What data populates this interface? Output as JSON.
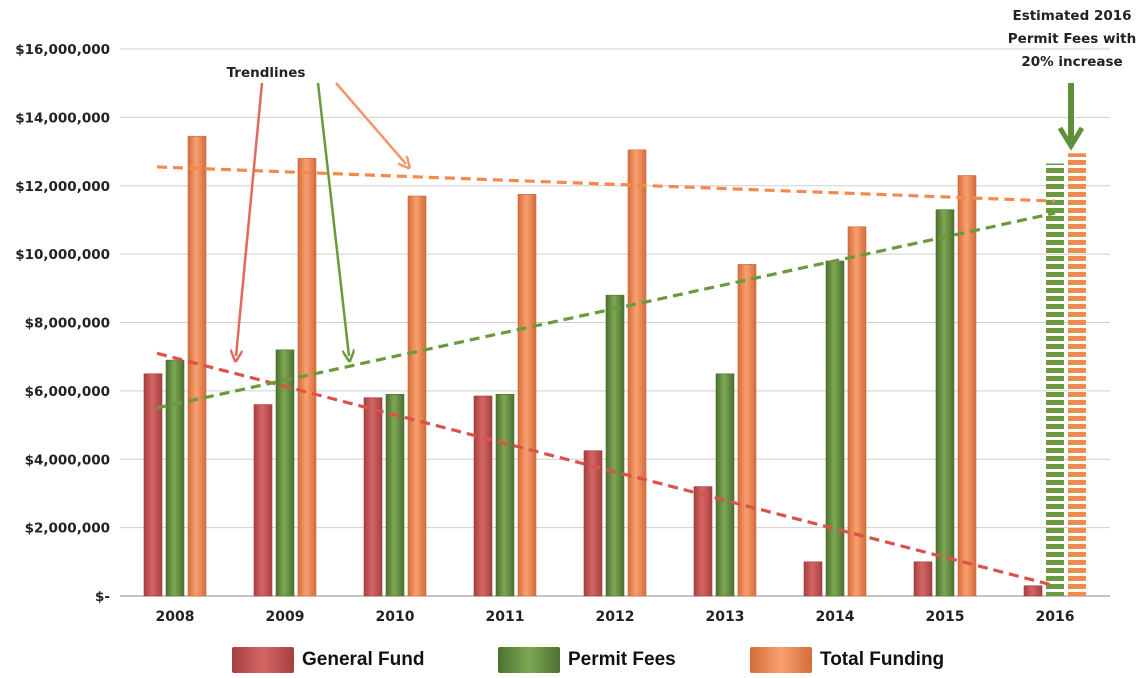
{
  "colors": {
    "general_fund": "#cc5a5a",
    "general_fund_dark": "#a33c3c",
    "permit_fees": "#6f9a45",
    "permit_fees_dark": "#4e7230",
    "total_funding": "#f39060",
    "total_funding_dark": "#d06a3a",
    "trend_general": "#d9534a",
    "trend_permit": "#6a9a3c",
    "trend_total": "#f28a4e",
    "grid": "#cfcfcf",
    "axis": "#888888"
  },
  "chart_data": {
    "type": "bar",
    "title": "",
    "xlabel": "",
    "ylabel": "",
    "categories": [
      "2008",
      "2009",
      "2010",
      "2011",
      "2012",
      "2013",
      "2014",
      "2015",
      "2016"
    ],
    "ylim": [
      0,
      16000000
    ],
    "yticks": [
      {
        "value": 0,
        "label": "$-"
      },
      {
        "value": 2000000,
        "label": "$2,000,000"
      },
      {
        "value": 4000000,
        "label": "$4,000,000"
      },
      {
        "value": 6000000,
        "label": "$6,000,000"
      },
      {
        "value": 8000000,
        "label": "$8,000,000"
      },
      {
        "value": 10000000,
        "label": "$10,000,000"
      },
      {
        "value": 12000000,
        "label": "$12,000,000"
      },
      {
        "value": 14000000,
        "label": "$14,000,000"
      },
      {
        "value": 16000000,
        "label": "$16,000,000"
      }
    ],
    "grid": true,
    "legend_position": "bottom",
    "series": [
      {
        "name": "General Fund",
        "values": [
          6500000,
          5600000,
          5800000,
          5850000,
          4250000,
          3200000,
          1000000,
          1000000,
          300000
        ],
        "estimated": [
          false,
          false,
          false,
          false,
          false,
          false,
          false,
          false,
          false
        ]
      },
      {
        "name": "Permit Fees",
        "values": [
          6900000,
          7200000,
          5900000,
          5900000,
          8800000,
          6500000,
          9800000,
          11300000,
          12650000
        ],
        "estimated": [
          false,
          false,
          false,
          false,
          false,
          false,
          false,
          false,
          true
        ]
      },
      {
        "name": "Total Funding",
        "values": [
          13450000,
          12800000,
          11700000,
          11750000,
          13050000,
          9700000,
          10800000,
          12300000,
          12950000
        ],
        "estimated": [
          false,
          false,
          false,
          false,
          false,
          false,
          false,
          false,
          true
        ]
      }
    ],
    "trendlines": [
      {
        "series": "General Fund",
        "start": [
          "2008",
          7100000
        ],
        "end": [
          "2016",
          300000
        ]
      },
      {
        "series": "Permit Fees",
        "start": [
          "2008",
          5500000
        ],
        "end": [
          "2016",
          11200000
        ]
      },
      {
        "series": "Total Funding",
        "start": [
          "2008",
          12550000
        ],
        "end": [
          "2016",
          11550000
        ]
      }
    ],
    "annotations": [
      {
        "text": "Trendlines"
      },
      {
        "text_lines": [
          "Estimated  2016",
          "Permit Fees with",
          "20% increase"
        ]
      }
    ]
  }
}
